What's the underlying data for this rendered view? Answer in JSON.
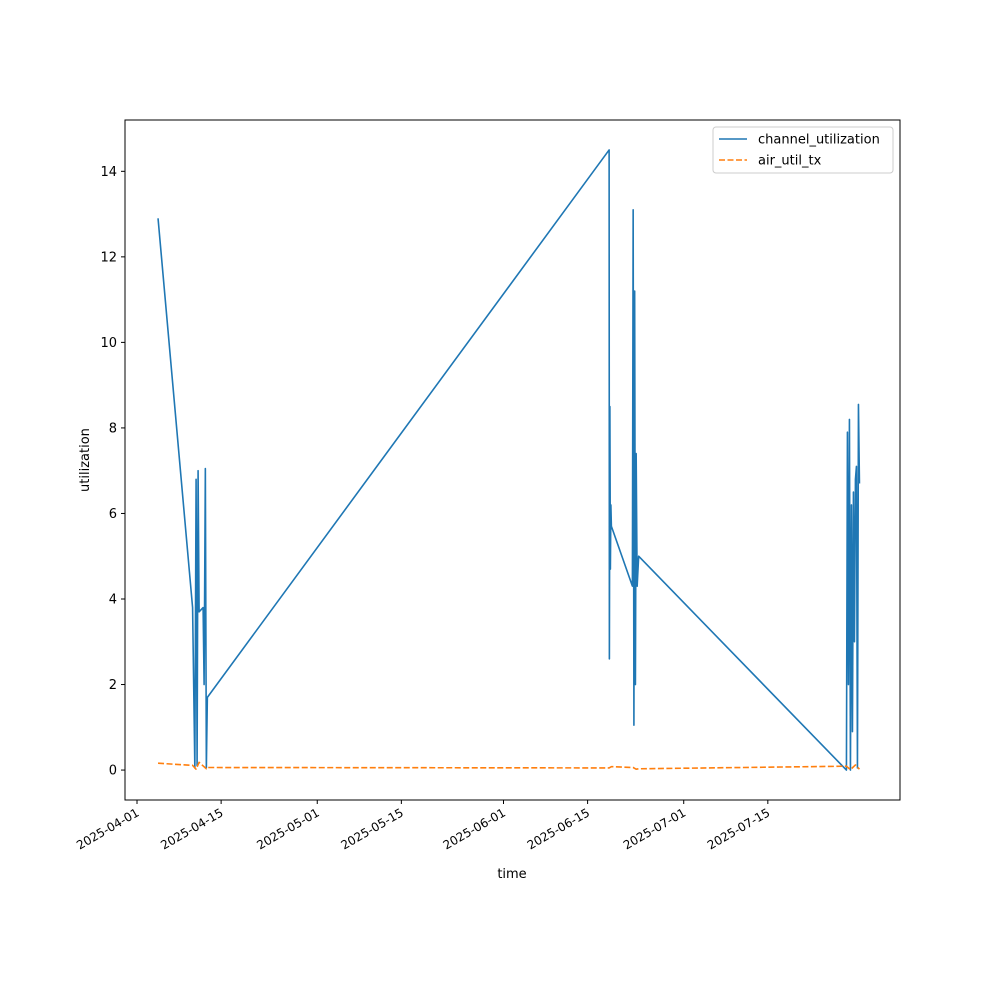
{
  "chart_data": {
    "type": "line",
    "title": "",
    "xlabel": "time",
    "ylabel": "utilization",
    "xlim": [
      "2025-03-30",
      "2025-08-06"
    ],
    "ylim": [
      -0.7,
      15.2
    ],
    "x_ticks": [
      "2025-04-01",
      "2025-04-15",
      "2025-05-01",
      "2025-05-15",
      "2025-06-01",
      "2025-06-15",
      "2025-07-01",
      "2025-07-15"
    ],
    "y_ticks": [
      0,
      2,
      4,
      6,
      8,
      10,
      12,
      14
    ],
    "grid": false,
    "legend_position": "upper right",
    "series": [
      {
        "name": "channel_utilization",
        "color": "#1f77b4",
        "style": "solid",
        "points": [
          [
            "2025-04-04 12:00",
            12.9
          ],
          [
            "2025-04-10 06:00",
            3.8
          ],
          [
            "2025-04-10 15:00",
            0.05
          ],
          [
            "2025-04-10 20:00",
            6.8
          ],
          [
            "2025-04-11 00:00",
            0.1
          ],
          [
            "2025-04-11 04:00",
            7.0
          ],
          [
            "2025-04-11 08:00",
            3.7
          ],
          [
            "2025-04-12 00:00",
            3.8
          ],
          [
            "2025-04-12 04:00",
            2.0
          ],
          [
            "2025-04-12 09:00",
            7.05
          ],
          [
            "2025-04-12 13:00",
            0.05
          ],
          [
            "2025-04-12 17:00",
            1.7
          ],
          [
            "2025-06-18 14:00",
            14.5
          ],
          [
            "2025-06-18 15:00",
            2.6
          ],
          [
            "2025-06-18 17:00",
            8.5
          ],
          [
            "2025-06-18 19:00",
            4.7
          ],
          [
            "2025-06-18 21:00",
            6.2
          ],
          [
            "2025-06-18 23:00",
            5.7
          ],
          [
            "2025-06-22 11:00",
            4.3
          ],
          [
            "2025-06-22 14:00",
            13.1
          ],
          [
            "2025-06-22 17:00",
            1.05
          ],
          [
            "2025-06-22 20:00",
            11.2
          ],
          [
            "2025-06-22 23:00",
            2.0
          ],
          [
            "2025-06-23 02:00",
            7.4
          ],
          [
            "2025-06-23 06:00",
            4.3
          ],
          [
            "2025-06-23 12:00",
            5.0
          ],
          [
            "2025-07-28 02:00",
            0.0
          ],
          [
            "2025-07-28 06:00",
            7.9
          ],
          [
            "2025-07-28 10:00",
            2.0
          ],
          [
            "2025-07-28 14:00",
            8.2
          ],
          [
            "2025-07-28 18:00",
            0.0
          ],
          [
            "2025-07-28 22:00",
            6.2
          ],
          [
            "2025-07-29 02:00",
            0.9
          ],
          [
            "2025-07-29 06:00",
            6.5
          ],
          [
            "2025-07-29 10:00",
            3.0
          ],
          [
            "2025-07-29 14:00",
            6.8
          ],
          [
            "2025-07-29 18:00",
            7.1
          ],
          [
            "2025-07-29 22:00",
            0.05
          ],
          [
            "2025-07-30 02:00",
            8.55
          ],
          [
            "2025-07-30 06:00",
            6.7
          ]
        ]
      },
      {
        "name": "air_util_tx",
        "color": "#ff7f0e",
        "style": "dashed",
        "points": [
          [
            "2025-04-04 12:00",
            0.16
          ],
          [
            "2025-04-10 06:00",
            0.11
          ],
          [
            "2025-04-10 20:00",
            0.02
          ],
          [
            "2025-04-11 08:00",
            0.18
          ],
          [
            "2025-04-12 13:00",
            0.03
          ],
          [
            "2025-04-12 17:00",
            0.06
          ],
          [
            "2025-06-18 14:00",
            0.05
          ],
          [
            "2025-06-18 23:00",
            0.08
          ],
          [
            "2025-06-22 14:00",
            0.06
          ],
          [
            "2025-06-23 02:00",
            0.02
          ],
          [
            "2025-06-23 12:00",
            0.03
          ],
          [
            "2025-07-28 02:00",
            0.09
          ],
          [
            "2025-07-28 18:00",
            0.01
          ],
          [
            "2025-07-29 14:00",
            0.12
          ],
          [
            "2025-07-30 06:00",
            0.02
          ]
        ]
      }
    ]
  }
}
